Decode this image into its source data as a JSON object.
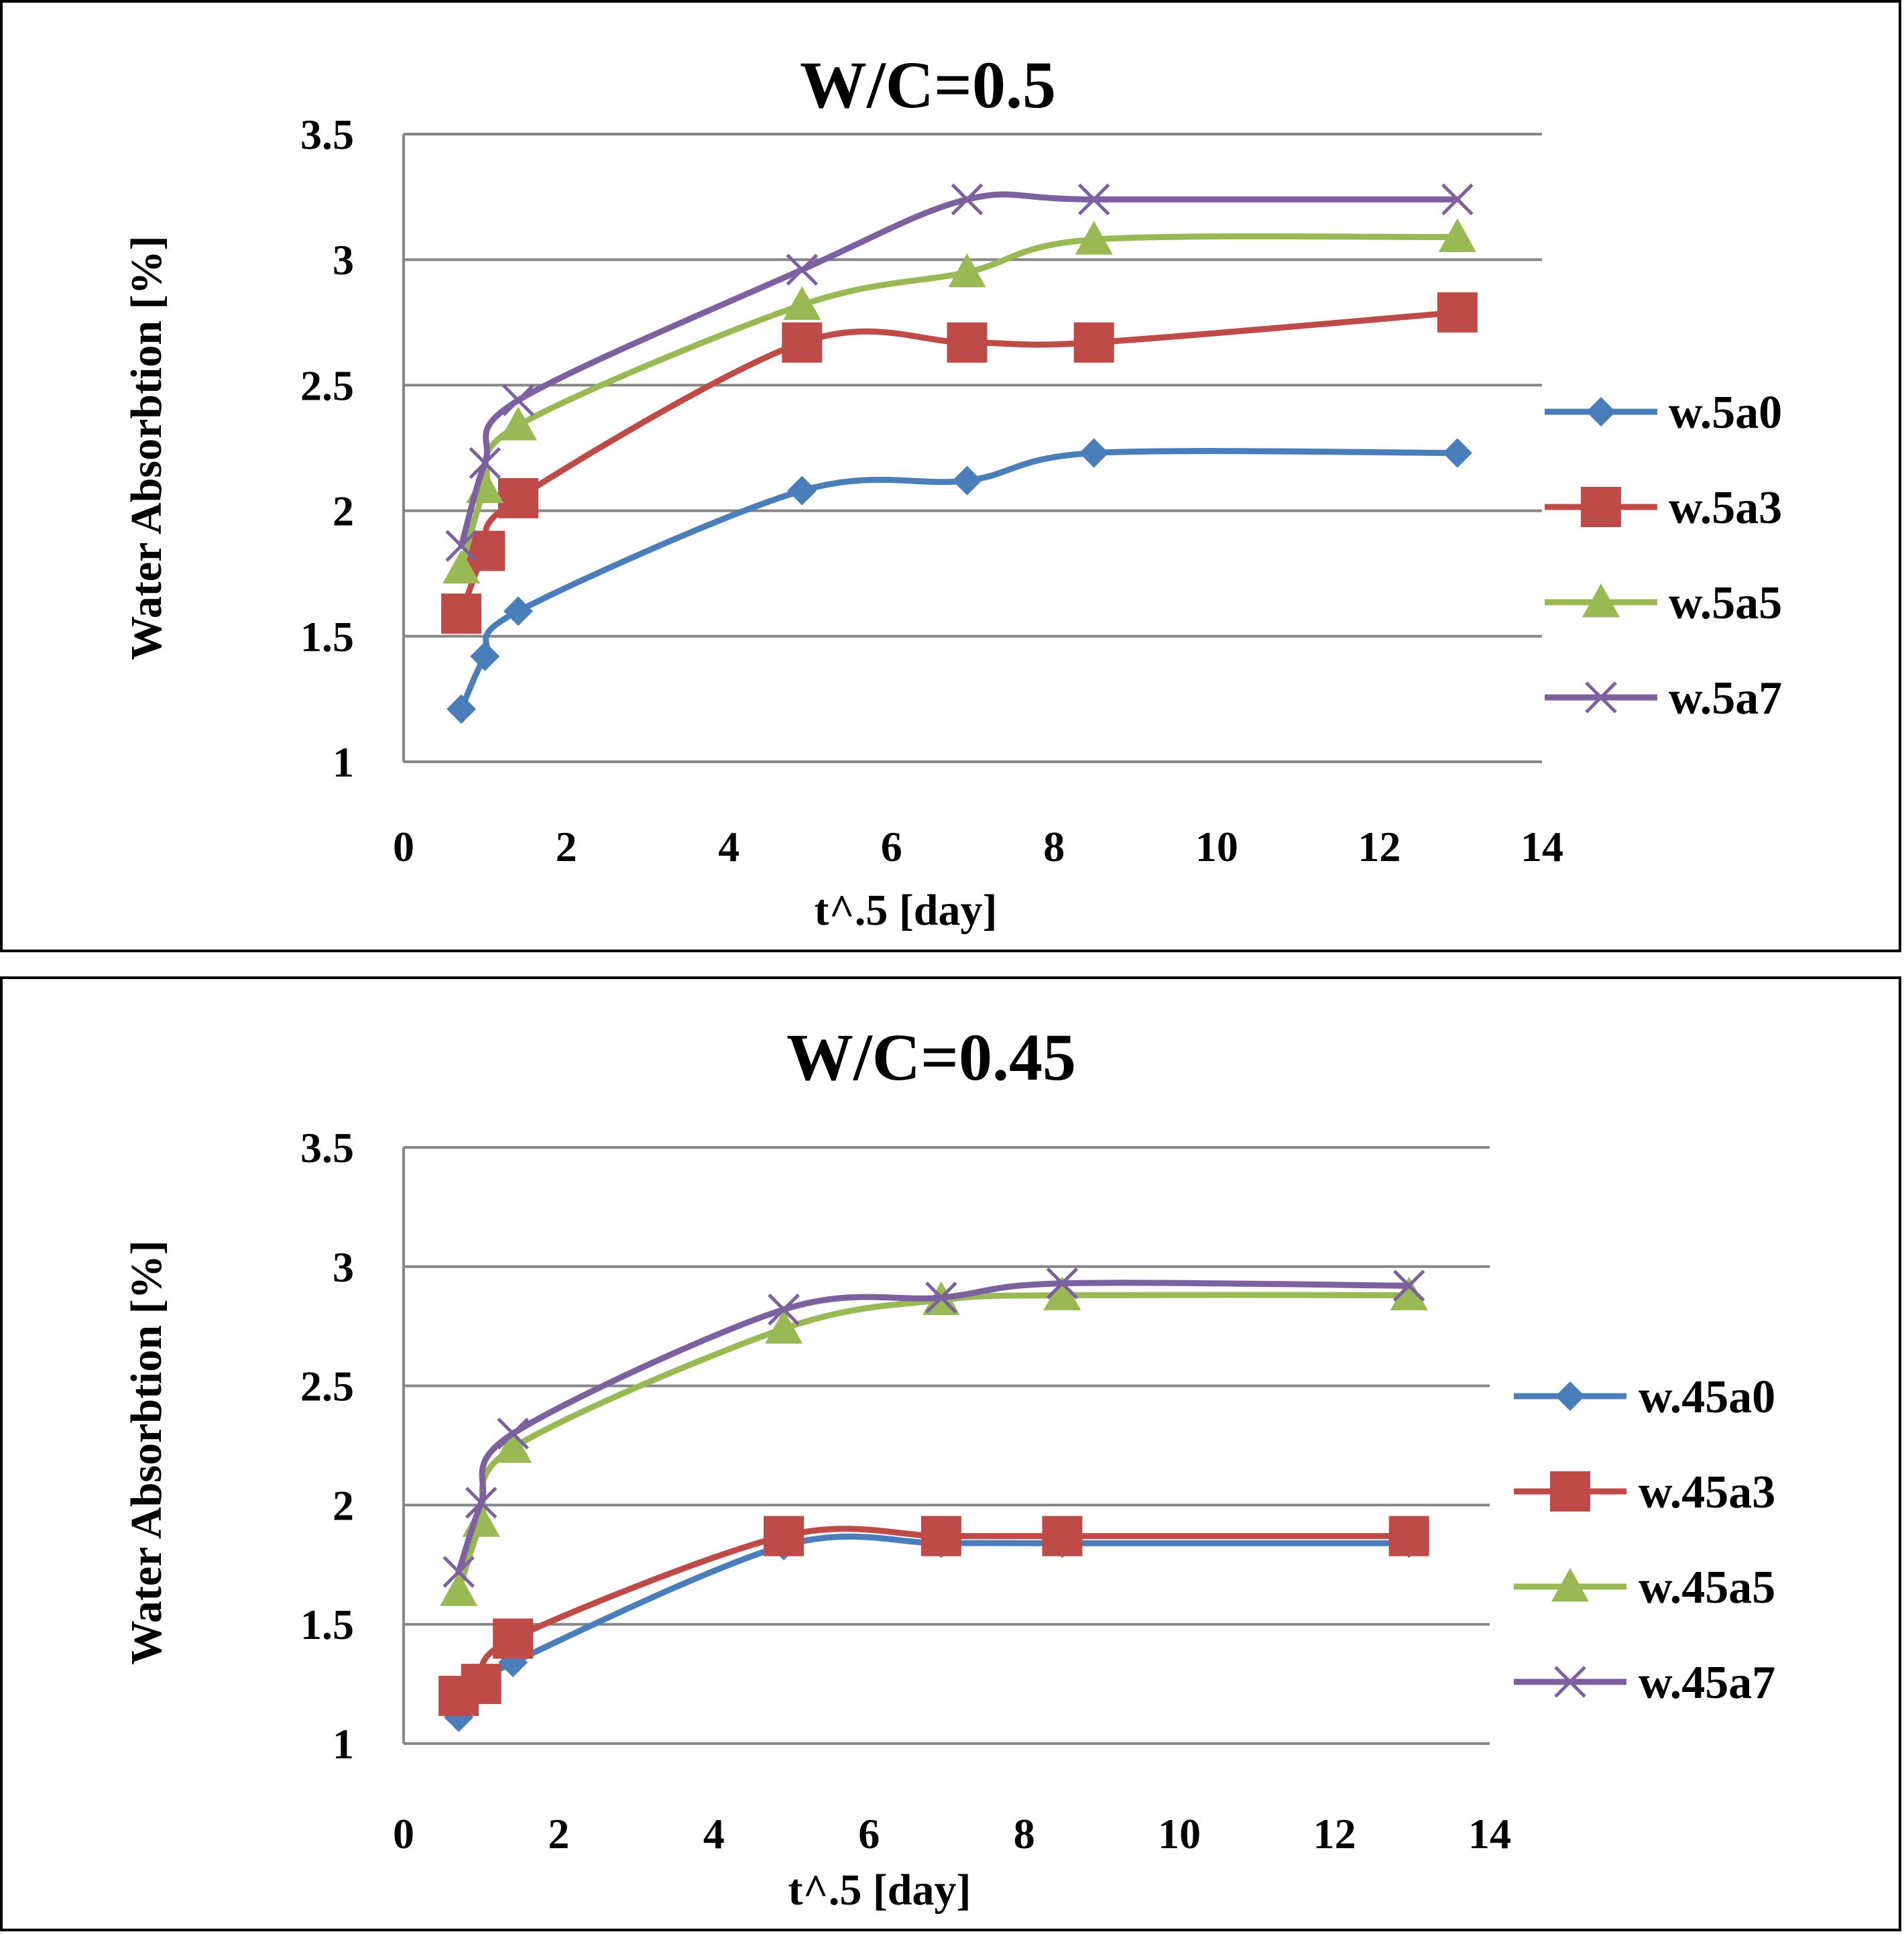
{
  "colors": {
    "w_a0": "#4a7ebb",
    "w_a3": "#be4b48",
    "w_a5": "#98b954",
    "w_a7": "#7d60a0",
    "grid": "#868686",
    "axis": "#868686"
  },
  "chart_data": [
    {
      "type": "line",
      "title": "W/C=0.5",
      "xlabel": "t^.5 [day]",
      "ylabel": "Water Absorbtion [%]",
      "xlim": [
        0,
        14
      ],
      "ylim": [
        1,
        3.5
      ],
      "xticks": [
        "0",
        "2",
        "4",
        "6",
        "8",
        "10",
        "12",
        "14"
      ],
      "yticks": [
        "1",
        "1.5",
        "2",
        "2.5",
        "3",
        "3.5"
      ],
      "grid": true,
      "legend_position": "right",
      "series": [
        {
          "name": "w.5a0",
          "marker": "diamond",
          "x": [
            0.71,
            1.0,
            1.41,
            4.9,
            6.93,
            8.49,
            12.96
          ],
          "y": [
            1.21,
            1.42,
            1.6,
            2.08,
            2.12,
            2.23,
            2.23
          ]
        },
        {
          "name": "w.5a3",
          "marker": "square",
          "x": [
            0.71,
            1.0,
            1.41,
            4.9,
            6.93,
            8.49,
            12.96
          ],
          "y": [
            1.59,
            1.84,
            2.05,
            2.67,
            2.67,
            2.67,
            2.79
          ]
        },
        {
          "name": "w.5a5",
          "marker": "triangle",
          "x": [
            0.71,
            1.0,
            1.41,
            4.9,
            6.93,
            8.49,
            12.96
          ],
          "y": [
            1.77,
            2.09,
            2.34,
            2.82,
            2.95,
            3.08,
            3.09
          ]
        },
        {
          "name": "w.5a7",
          "marker": "x",
          "x": [
            0.71,
            1.0,
            1.41,
            4.9,
            6.93,
            8.49,
            12.96
          ],
          "y": [
            1.86,
            2.19,
            2.44,
            2.96,
            3.24,
            3.24,
            3.24
          ]
        }
      ]
    },
    {
      "type": "line",
      "title": "W/C=0.45",
      "xlabel": "t^.5 [day]",
      "ylabel": "Water Absorbtion [%]",
      "xlim": [
        0,
        14
      ],
      "ylim": [
        1,
        3.5
      ],
      "xticks": [
        "0",
        "2",
        "4",
        "6",
        "8",
        "10",
        "12",
        "14"
      ],
      "yticks": [
        "1",
        "1.5",
        "2",
        "2.5",
        "3",
        "3.5"
      ],
      "grid": true,
      "legend_position": "right",
      "series": [
        {
          "name": "w.45a0",
          "marker": "diamond",
          "x": [
            0.71,
            1.0,
            1.41,
            4.9,
            6.93,
            8.49,
            12.96
          ],
          "y": [
            1.11,
            1.23,
            1.34,
            1.83,
            1.84,
            1.84,
            1.84
          ]
        },
        {
          "name": "w.45a3",
          "marker": "square",
          "x": [
            0.71,
            1.0,
            1.41,
            4.9,
            6.93,
            8.49,
            12.96
          ],
          "y": [
            1.2,
            1.25,
            1.44,
            1.87,
            1.87,
            1.87,
            1.87
          ]
        },
        {
          "name": "w.45a5",
          "marker": "triangle",
          "x": [
            0.71,
            1.0,
            1.41,
            4.9,
            6.93,
            8.49,
            12.96
          ],
          "y": [
            1.64,
            1.93,
            2.24,
            2.74,
            2.86,
            2.88,
            2.88
          ]
        },
        {
          "name": "w.45a7",
          "marker": "x",
          "x": [
            0.71,
            1.0,
            1.41,
            4.9,
            6.93,
            8.49,
            12.96
          ],
          "y": [
            1.72,
            2.01,
            2.3,
            2.82,
            2.87,
            2.93,
            2.92
          ]
        }
      ]
    }
  ]
}
